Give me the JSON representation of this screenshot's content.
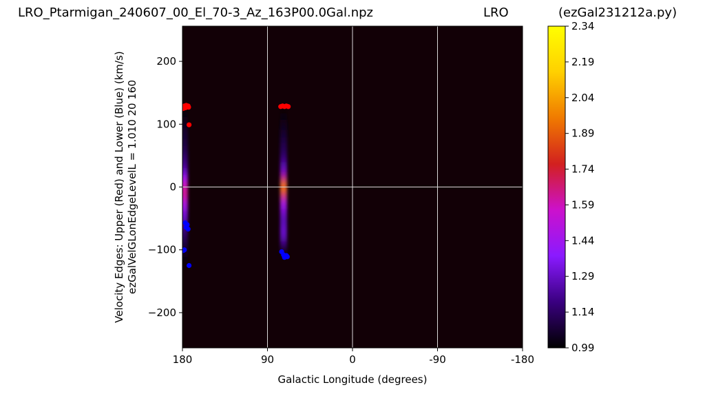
{
  "titles": {
    "left": "LRO_Ptarmigan_240607_00_El_70-3_Az_163P00.0Gal.npz",
    "center": "LRO",
    "right": "(ezGal231212a.py)"
  },
  "chart_data": {
    "type": "heatmap",
    "xlabel": "Galactic Longitude (degrees)",
    "ylabel_lines": [
      "Velocity Edges: Upper (Red) and Lower (Blue) (km/s)",
      "ezGalVelGLonEdgeLevelL = 1.010  20  160"
    ],
    "xlim": [
      180,
      -180
    ],
    "ylim": [
      -256,
      256
    ],
    "x_ticks": [
      {
        "value": 180,
        "label": "180"
      },
      {
        "value": 90,
        "label": "90"
      },
      {
        "value": 0,
        "label": "0"
      },
      {
        "value": -90,
        "label": "-90"
      },
      {
        "value": -180,
        "label": "-180"
      }
    ],
    "y_ticks": [
      {
        "value": 200,
        "label": "200"
      },
      {
        "value": 100,
        "label": "100"
      },
      {
        "value": 0,
        "label": "0"
      },
      {
        "value": -100,
        "label": "−100"
      },
      {
        "value": -200,
        "label": "−200"
      }
    ],
    "grid": {
      "x": [
        90,
        0,
        -90
      ],
      "y": [
        0
      ],
      "color": "#d9d9d9"
    },
    "background_color": "#120006",
    "heat_columns": [
      {
        "glon": 178,
        "profile": [
          {
            "v": 130,
            "level": 1.0
          },
          {
            "v": 100,
            "level": 1.04
          },
          {
            "v": 60,
            "level": 1.1
          },
          {
            "v": 30,
            "level": 1.22
          },
          {
            "v": 15,
            "level": 1.4
          },
          {
            "v": 5,
            "level": 1.58
          },
          {
            "v": -10,
            "level": 1.66
          },
          {
            "v": -25,
            "level": 1.48
          },
          {
            "v": -45,
            "level": 1.3
          },
          {
            "v": -70,
            "level": 1.16
          },
          {
            "v": -100,
            "level": 1.05
          },
          {
            "v": -125,
            "level": 1.0
          }
        ]
      },
      {
        "glon": 73,
        "profile": [
          {
            "v": 130,
            "level": 1.0
          },
          {
            "v": 90,
            "level": 1.05
          },
          {
            "v": 50,
            "level": 1.14
          },
          {
            "v": 25,
            "level": 1.3
          },
          {
            "v": 10,
            "level": 1.7
          },
          {
            "v": 3,
            "level": 2.0
          },
          {
            "v": -8,
            "level": 1.85
          },
          {
            "v": -25,
            "level": 1.45
          },
          {
            "v": -50,
            "level": 1.25
          },
          {
            "v": -75,
            "level": 1.3
          },
          {
            "v": -95,
            "level": 1.12
          },
          {
            "v": -112,
            "level": 1.0
          }
        ]
      }
    ],
    "series": [
      {
        "name": "Upper (Red)",
        "color": "#ff0000",
        "points": [
          {
            "x": 179,
            "y": 125
          },
          {
            "x": 178,
            "y": 129
          },
          {
            "x": 177,
            "y": 126
          },
          {
            "x": 176,
            "y": 130
          },
          {
            "x": 175,
            "y": 128
          },
          {
            "x": 174,
            "y": 129
          },
          {
            "x": 173.5,
            "y": 127
          },
          {
            "x": 173,
            "y": 99
          },
          {
            "x": 76,
            "y": 128
          },
          {
            "x": 74,
            "y": 129
          },
          {
            "x": 72,
            "y": 128
          },
          {
            "x": 70,
            "y": 129
          },
          {
            "x": 68,
            "y": 128
          }
        ]
      },
      {
        "name": "Lower (Blue)",
        "color": "#0000ff",
        "points": [
          {
            "x": 177,
            "y": -57
          },
          {
            "x": 175,
            "y": -60
          },
          {
            "x": 176,
            "y": -64
          },
          {
            "x": 174,
            "y": -67
          },
          {
            "x": 179,
            "y": -101
          },
          {
            "x": 178,
            "y": -100
          },
          {
            "x": 173,
            "y": -125
          },
          {
            "x": 75,
            "y": -103
          },
          {
            "x": 73,
            "y": -108
          },
          {
            "x": 72,
            "y": -112
          },
          {
            "x": 70,
            "y": -109
          },
          {
            "x": 69,
            "y": -111
          }
        ]
      }
    ],
    "colorbar": {
      "min": 0.99,
      "max": 2.34,
      "tick_labels": [
        "2.34",
        "2.19",
        "2.04",
        "1.89",
        "1.74",
        "1.59",
        "1.44",
        "1.29",
        "1.14",
        "0.99"
      ],
      "colormap": [
        "#000000",
        "#3a0080",
        "#8a1aff",
        "#cc11cc",
        "#d2201f",
        "#f07a00",
        "#ffd000",
        "#ffff00"
      ]
    }
  }
}
